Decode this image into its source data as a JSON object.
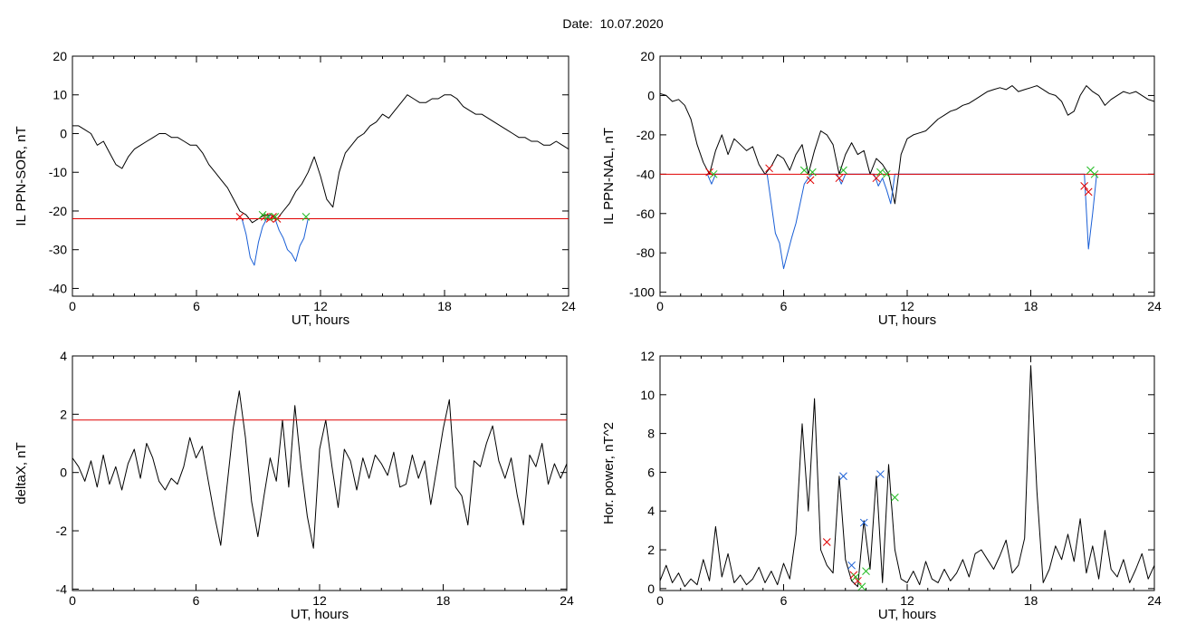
{
  "figure": {
    "title": "Date:  10.07.2020"
  },
  "chart_data": [
    {
      "type": "line",
      "xlabel": "UT, hours",
      "ylabel": "IL PPN-SOR, nT",
      "xlim": [
        0,
        24
      ],
      "ylim": [
        -42,
        20
      ],
      "xticks": [
        0,
        6,
        12,
        18,
        24
      ],
      "yticks": [
        20,
        10,
        0,
        -10,
        -20,
        -30,
        -40
      ],
      "threshold": {
        "value": -22,
        "color": "#e00000"
      },
      "series": [
        {
          "color": "#000000",
          "x": [
            0,
            0.3,
            0.6,
            0.9,
            1.2,
            1.5,
            1.8,
            2.1,
            2.4,
            2.7,
            3.0,
            3.3,
            3.6,
            3.9,
            4.2,
            4.5,
            4.8,
            5.1,
            5.4,
            5.7,
            6.0,
            6.3,
            6.6,
            6.9,
            7.2,
            7.5,
            7.8,
            8.1,
            8.4,
            8.7,
            9.0,
            9.3,
            9.6,
            9.9,
            10.2,
            10.5,
            10.8,
            11.1,
            11.4,
            11.7,
            12.0,
            12.3,
            12.6,
            12.9,
            13.2,
            13.5,
            13.8,
            14.1,
            14.4,
            14.7,
            15.0,
            15.3,
            15.6,
            15.9,
            16.2,
            16.5,
            16.8,
            17.1,
            17.4,
            17.7,
            18.0,
            18.3,
            18.6,
            18.9,
            19.2,
            19.5,
            19.8,
            20.1,
            20.4,
            20.7,
            21.0,
            21.3,
            21.6,
            21.9,
            22.2,
            22.5,
            22.8,
            23.1,
            23.4,
            23.7,
            24.0
          ],
          "y": [
            2,
            2,
            1,
            0,
            -3,
            -2,
            -5,
            -8,
            -9,
            -6,
            -4,
            -3,
            -2,
            -1,
            0,
            0,
            -1,
            -1,
            -2,
            -3,
            -3,
            -5,
            -8,
            -10,
            -12,
            -14,
            -17,
            -20,
            -21,
            -23,
            -22,
            -21,
            -21,
            -22,
            -20,
            -18,
            -15,
            -13,
            -10,
            -6,
            -11,
            -17,
            -19,
            -10,
            -5,
            -3,
            -1,
            0,
            2,
            3,
            5,
            4,
            6,
            8,
            10,
            9,
            8,
            8,
            9,
            9,
            10,
            10,
            9,
            7,
            6,
            5,
            5,
            4,
            3,
            2,
            1,
            0,
            -1,
            -1,
            -2,
            -2,
            -3,
            -3,
            -2,
            -3,
            -4
          ]
        },
        {
          "color": "#1a5fd6",
          "x": [
            8.2,
            8.4,
            8.6,
            8.8,
            9.0,
            9.2,
            9.4,
            9.6,
            9.8,
            10.0,
            10.2,
            10.4,
            10.6,
            10.8,
            11.0,
            11.2,
            11.4
          ],
          "y": [
            -22,
            -26,
            -32,
            -34,
            -28,
            -24,
            -22,
            -21,
            -22,
            -25,
            -27,
            -30,
            -31,
            -33,
            -29,
            -27,
            -22
          ]
        }
      ],
      "markers": [
        {
          "x": 8.1,
          "y": -21.5,
          "color": "#e00000"
        },
        {
          "x": 9.3,
          "y": -21.5,
          "color": "#e00000"
        },
        {
          "x": 9.55,
          "y": -22,
          "color": "#e00000"
        },
        {
          "x": 9.7,
          "y": -21.5,
          "color": "#e00000"
        },
        {
          "x": 9.9,
          "y": -22,
          "color": "#e00000"
        },
        {
          "x": 9.2,
          "y": -21,
          "color": "#22bb22"
        },
        {
          "x": 9.45,
          "y": -21.5,
          "color": "#22bb22"
        },
        {
          "x": 9.8,
          "y": -21.5,
          "color": "#22bb22"
        },
        {
          "x": 11.3,
          "y": -21.5,
          "color": "#22bb22"
        }
      ]
    },
    {
      "type": "line",
      "xlabel": "UT, hours",
      "ylabel": "IL PPN-NAL, nT",
      "xlim": [
        0,
        24
      ],
      "ylim": [
        -102,
        20
      ],
      "xticks": [
        0,
        6,
        12,
        18,
        24
      ],
      "yticks": [
        20,
        0,
        -20,
        -40,
        -60,
        -80,
        -100
      ],
      "threshold": {
        "value": -40,
        "color": "#e00000"
      },
      "series": [
        {
          "color": "#000000",
          "x": [
            0,
            0.3,
            0.6,
            0.9,
            1.2,
            1.5,
            1.8,
            2.1,
            2.4,
            2.7,
            3.0,
            3.3,
            3.6,
            3.9,
            4.2,
            4.5,
            4.8,
            5.1,
            5.4,
            5.7,
            6.0,
            6.3,
            6.6,
            6.9,
            7.2,
            7.5,
            7.8,
            8.1,
            8.4,
            8.7,
            9.0,
            9.3,
            9.6,
            9.9,
            10.2,
            10.5,
            10.8,
            11.1,
            11.4,
            11.7,
            12.0,
            12.3,
            12.6,
            12.9,
            13.2,
            13.5,
            13.8,
            14.1,
            14.4,
            14.7,
            15.0,
            15.3,
            15.6,
            15.9,
            16.2,
            16.5,
            16.8,
            17.1,
            17.4,
            17.7,
            18.0,
            18.3,
            18.6,
            18.9,
            19.2,
            19.5,
            19.8,
            20.1,
            20.4,
            20.7,
            21.0,
            21.3,
            21.6,
            21.9,
            22.2,
            22.5,
            22.8,
            23.1,
            23.4,
            23.7,
            24.0
          ],
          "y": [
            1,
            0,
            -3,
            -2,
            -5,
            -12,
            -25,
            -34,
            -40,
            -28,
            -20,
            -30,
            -22,
            -25,
            -28,
            -26,
            -35,
            -40,
            -36,
            -30,
            -32,
            -38,
            -30,
            -25,
            -40,
            -28,
            -18,
            -20,
            -25,
            -40,
            -30,
            -24,
            -30,
            -28,
            -40,
            -32,
            -35,
            -40,
            -55,
            -30,
            -22,
            -20,
            -19,
            -18,
            -15,
            -12,
            -10,
            -8,
            -7,
            -5,
            -4,
            -2,
            0,
            2,
            3,
            4,
            3,
            5,
            2,
            3,
            4,
            5,
            3,
            1,
            0,
            -3,
            -10,
            -8,
            0,
            5,
            2,
            0,
            -5,
            -2,
            0,
            2,
            1,
            2,
            0,
            -2,
            -3
          ]
        },
        {
          "color": "#1a5fd6",
          "x": [
            2.3,
            2.5,
            2.7,
            5.2,
            5.4,
            5.6,
            5.8,
            6.0,
            6.2,
            6.4,
            6.6,
            6.8,
            7.0,
            7.2,
            7.4,
            8.6,
            8.8,
            9.0,
            10.4,
            10.6,
            10.8,
            11.0,
            11.2,
            11.4,
            20.6,
            20.8,
            21.0,
            21.2
          ],
          "y": [
            -40,
            -45,
            -40,
            -40,
            -55,
            -70,
            -75,
            -88,
            -80,
            -72,
            -65,
            -55,
            -45,
            -42,
            -40,
            -40,
            -45,
            -40,
            -40,
            -46,
            -42,
            -48,
            -55,
            -40,
            -40,
            -78,
            -60,
            -40
          ]
        }
      ],
      "markers": [
        {
          "x": 2.4,
          "y": -39,
          "color": "#e00000"
        },
        {
          "x": 5.3,
          "y": -37,
          "color": "#e00000"
        },
        {
          "x": 7.3,
          "y": -43,
          "color": "#e00000"
        },
        {
          "x": 8.7,
          "y": -42,
          "color": "#e00000"
        },
        {
          "x": 10.5,
          "y": -42,
          "color": "#e00000"
        },
        {
          "x": 20.6,
          "y": -46,
          "color": "#e00000"
        },
        {
          "x": 20.8,
          "y": -49,
          "color": "#e00000"
        },
        {
          "x": 2.6,
          "y": -40,
          "color": "#22bb22"
        },
        {
          "x": 7.0,
          "y": -38,
          "color": "#22bb22"
        },
        {
          "x": 7.4,
          "y": -39,
          "color": "#22bb22"
        },
        {
          "x": 8.9,
          "y": -38,
          "color": "#22bb22"
        },
        {
          "x": 10.7,
          "y": -39,
          "color": "#22bb22"
        },
        {
          "x": 11.0,
          "y": -40,
          "color": "#22bb22"
        },
        {
          "x": 20.9,
          "y": -38,
          "color": "#22bb22"
        },
        {
          "x": 21.1,
          "y": -40,
          "color": "#22bb22"
        }
      ]
    },
    {
      "type": "line",
      "xlabel": "UT, hours",
      "ylabel": "deltaX, nT",
      "xlim": [
        0,
        24
      ],
      "ylim": [
        -4.05,
        4
      ],
      "xticks": [
        0,
        6,
        12,
        18,
        24
      ],
      "yticks": [
        4,
        2,
        0,
        -2,
        -4
      ],
      "threshold": {
        "value": 1.8,
        "color": "#e00000"
      },
      "series": [
        {
          "color": "#000000",
          "x": [
            0,
            0.3,
            0.6,
            0.9,
            1.2,
            1.5,
            1.8,
            2.1,
            2.4,
            2.7,
            3.0,
            3.3,
            3.6,
            3.9,
            4.2,
            4.5,
            4.8,
            5.1,
            5.4,
            5.7,
            6.0,
            6.3,
            6.6,
            6.9,
            7.2,
            7.5,
            7.8,
            8.1,
            8.4,
            8.7,
            9.0,
            9.3,
            9.6,
            9.9,
            10.2,
            10.5,
            10.8,
            11.1,
            11.4,
            11.7,
            12.0,
            12.3,
            12.6,
            12.9,
            13.2,
            13.5,
            13.8,
            14.1,
            14.4,
            14.7,
            15.0,
            15.3,
            15.6,
            15.9,
            16.2,
            16.5,
            16.8,
            17.1,
            17.4,
            17.7,
            18.0,
            18.3,
            18.6,
            18.9,
            19.2,
            19.5,
            19.8,
            20.1,
            20.4,
            20.7,
            21.0,
            21.3,
            21.6,
            21.9,
            22.2,
            22.5,
            22.8,
            23.1,
            23.4,
            23.7,
            24.0
          ],
          "y": [
            0.5,
            0.2,
            -0.3,
            0.4,
            -0.5,
            0.6,
            -0.4,
            0.2,
            -0.6,
            0.3,
            0.8,
            -0.2,
            1.0,
            0.5,
            -0.3,
            -0.6,
            -0.2,
            -0.4,
            0.2,
            1.2,
            0.5,
            0.9,
            -0.3,
            -1.5,
            -2.5,
            -0.5,
            1.5,
            2.8,
            1.2,
            -1.0,
            -2.2,
            -0.8,
            0.5,
            -0.3,
            1.8,
            -0.5,
            2.3,
            0.2,
            -1.5,
            -2.6,
            0.8,
            1.8,
            0.2,
            -1.2,
            0.8,
            0.4,
            -0.6,
            0.5,
            -0.2,
            0.6,
            0.3,
            -0.1,
            0.7,
            -0.5,
            -0.4,
            0.6,
            -0.2,
            0.4,
            -1.1,
            0.2,
            1.5,
            2.5,
            -0.5,
            -0.8,
            -1.8,
            0.4,
            0.2,
            1.0,
            1.6,
            0.4,
            -0.2,
            0.5,
            -0.8,
            -1.8,
            0.6,
            0.2,
            1.0,
            -0.4,
            0.3,
            -0.2,
            0.3
          ]
        }
      ],
      "markers": []
    },
    {
      "type": "line",
      "xlabel": "UT, hours",
      "ylabel": "Hor. power, nT^2",
      "xlim": [
        0,
        24
      ],
      "ylim": [
        -0.1,
        12
      ],
      "xticks": [
        0,
        6,
        12,
        18,
        24
      ],
      "yticks": [
        12,
        10,
        8,
        6,
        4,
        2,
        0
      ],
      "threshold": null,
      "series": [
        {
          "color": "#000000",
          "x": [
            0,
            0.3,
            0.6,
            0.9,
            1.2,
            1.5,
            1.8,
            2.1,
            2.4,
            2.7,
            3.0,
            3.3,
            3.6,
            3.9,
            4.2,
            4.5,
            4.8,
            5.1,
            5.4,
            5.7,
            6.0,
            6.3,
            6.6,
            6.9,
            7.2,
            7.5,
            7.8,
            8.1,
            8.4,
            8.7,
            9.0,
            9.3,
            9.6,
            9.9,
            10.2,
            10.5,
            10.8,
            11.1,
            11.4,
            11.7,
            12.0,
            12.3,
            12.6,
            12.9,
            13.2,
            13.5,
            13.8,
            14.1,
            14.4,
            14.7,
            15.0,
            15.3,
            15.6,
            15.9,
            16.2,
            16.5,
            16.8,
            17.1,
            17.4,
            17.7,
            18.0,
            18.3,
            18.6,
            18.9,
            19.2,
            19.5,
            19.8,
            20.1,
            20.4,
            20.7,
            21.0,
            21.3,
            21.6,
            21.9,
            22.2,
            22.5,
            22.8,
            23.1,
            23.4,
            23.7,
            24.0
          ],
          "y": [
            0.4,
            1.2,
            0.3,
            0.8,
            0.1,
            0.5,
            0.2,
            1.5,
            0.4,
            3.2,
            0.6,
            1.8,
            0.3,
            0.7,
            0.2,
            0.5,
            1.1,
            0.3,
            0.9,
            0.2,
            1.3,
            0.5,
            2.8,
            8.5,
            4.0,
            9.8,
            2.0,
            1.2,
            0.8,
            5.8,
            1.5,
            0.4,
            0.1,
            3.5,
            1.0,
            5.8,
            0.3,
            6.4,
            2.0,
            0.5,
            0.3,
            0.9,
            0.2,
            1.4,
            0.5,
            0.3,
            1.0,
            0.4,
            0.8,
            1.5,
            0.6,
            1.8,
            2.0,
            1.5,
            1.0,
            1.7,
            2.5,
            0.8,
            1.2,
            2.6,
            11.5,
            5.0,
            0.3,
            1.0,
            2.2,
            1.5,
            2.8,
            1.4,
            3.6,
            0.8,
            2.2,
            0.5,
            3.0,
            1.0,
            0.6,
            1.5,
            0.3,
            1.0,
            1.8,
            0.5,
            1.2
          ]
        }
      ],
      "markers": [
        {
          "x": 8.1,
          "y": 2.4,
          "color": "#e00000"
        },
        {
          "x": 9.4,
          "y": 0.7,
          "color": "#e00000"
        },
        {
          "x": 9.6,
          "y": 0.4,
          "color": "#e00000"
        },
        {
          "x": 9.5,
          "y": 0.6,
          "color": "#22bb22"
        },
        {
          "x": 9.8,
          "y": 0.1,
          "color": "#22bb22"
        },
        {
          "x": 10.0,
          "y": 0.9,
          "color": "#22bb22"
        },
        {
          "x": 11.4,
          "y": 4.7,
          "color": "#22bb22"
        },
        {
          "x": 8.9,
          "y": 5.8,
          "color": "#1a5fd6"
        },
        {
          "x": 9.3,
          "y": 1.2,
          "color": "#1a5fd6"
        },
        {
          "x": 9.9,
          "y": 3.4,
          "color": "#1a5fd6"
        },
        {
          "x": 10.7,
          "y": 5.9,
          "color": "#1a5fd6"
        }
      ]
    }
  ]
}
